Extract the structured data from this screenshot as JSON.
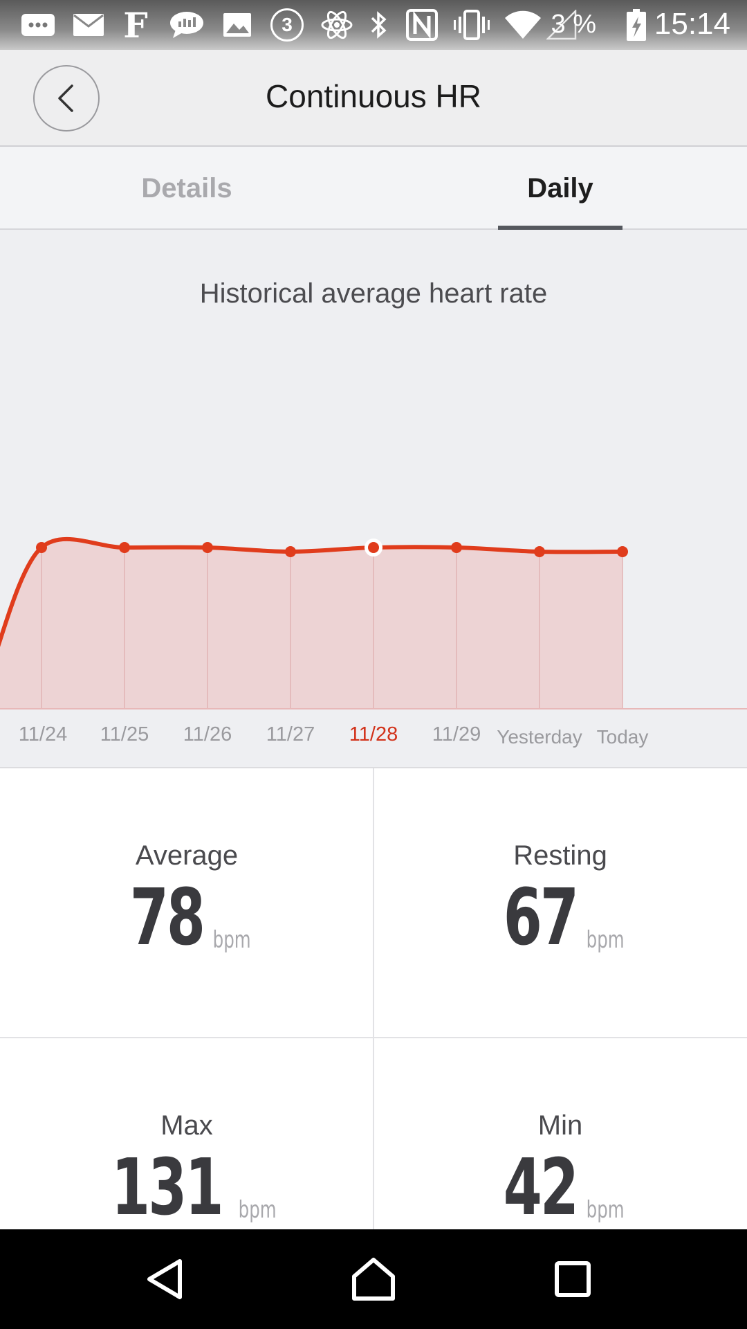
{
  "status_bar": {
    "battery_percent": "3 %",
    "time": "15:14",
    "notification_badge": "3",
    "f_glyph": "F",
    "icons": [
      "chat-more-icon",
      "mail-icon",
      "f-app-icon",
      "messenger-icon",
      "gallery-icon",
      "counter-icon",
      "atom-icon",
      "bluetooth-icon",
      "nfc-icon",
      "vibrate-icon",
      "wifi-icon",
      "signal-icon",
      "battery-icon"
    ]
  },
  "header": {
    "title": "Continuous HR",
    "back_icon": "chevron-left-icon"
  },
  "tabs": [
    {
      "label": "Details",
      "selected": false
    },
    {
      "label": "Daily",
      "selected": true
    }
  ],
  "chart": {
    "title": "Historical average heart rate",
    "accent_color": "#e03c1c",
    "fill_color": "#edd3d4",
    "selected_label_color": "#d2321a",
    "axis_label_color": "#9a9a9e"
  },
  "chart_data": {
    "type": "area",
    "title": "Historical average heart rate",
    "categories": [
      "11/24",
      "11/25",
      "11/26",
      "11/27",
      "11/28",
      "11/29",
      "Yesterday",
      "Today"
    ],
    "values": [
      78,
      78,
      78,
      77,
      78,
      78,
      77,
      77
    ],
    "selected_category": "11/28",
    "grid": false,
    "legend": "none"
  },
  "stats": {
    "average": {
      "label": "Average",
      "value": "78",
      "unit": "bpm"
    },
    "resting": {
      "label": "Resting",
      "value": "67",
      "unit": "bpm"
    },
    "max": {
      "label": "Max",
      "value": "131",
      "unit": "bpm"
    },
    "min": {
      "label": "Min",
      "value": "42",
      "unit": "bpm"
    }
  },
  "nav_bar": {
    "icons": [
      "back-triangle-icon",
      "home-icon",
      "recents-icon"
    ]
  }
}
